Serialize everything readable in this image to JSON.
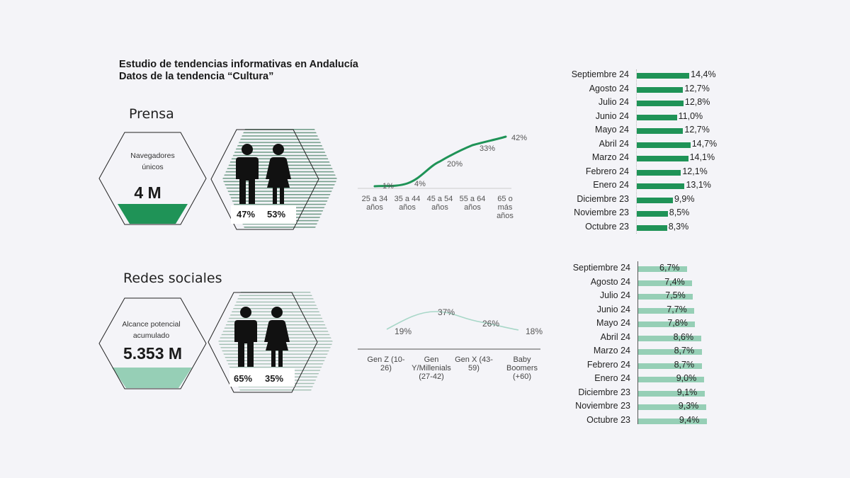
{
  "header": {
    "title_line1": "Estudio de tendencias informativas en Andalucía",
    "title_line2": "Datos de la tendencia “Cultura”"
  },
  "colors": {
    "background": "#f4f4f8",
    "prensa_green": "#1f9357",
    "redes_green": "#96cfb6",
    "redes_line": "#a8d7c8",
    "stripe_green": "#5d8f78"
  },
  "prensa": {
    "section_label": "Prensa",
    "metric_label_line1": "Navegadores",
    "metric_label_line2": "únicos",
    "metric_value": "4 M",
    "gender": {
      "male_pct": "47%",
      "female_pct": "53%"
    }
  },
  "redes": {
    "section_label": "Redes sociales",
    "metric_label_line1": "Alcance potencial",
    "metric_label_line2": "acumulado",
    "metric_value": "5.353 M",
    "gender": {
      "male_pct": "65%",
      "female_pct": "35%"
    }
  },
  "chart_data": [
    {
      "type": "line",
      "title": "Prensa - distribución por edad",
      "categories": [
        "25 a 34 años",
        "35 a 44 años",
        "45 a 54 años",
        "55 a 64 años",
        "65 o más años"
      ],
      "values": [
        1,
        4,
        20,
        33,
        42
      ],
      "labels": [
        "1%",
        "4%",
        "20%",
        "33%",
        "42%"
      ],
      "xlabel": "",
      "ylabel": "",
      "grid": false,
      "color": "#1f9357"
    },
    {
      "type": "line",
      "title": "Redes sociales - distribución por generación",
      "categories": [
        "Gen Z (10-26)",
        "Gen Y/Millenials (27-42)",
        "Gen X (43-59)",
        "Baby Boomers (+60)"
      ],
      "values": [
        19,
        37,
        26,
        18
      ],
      "labels": [
        "19%",
        "37%",
        "26%",
        "18%"
      ],
      "xlabel": "",
      "ylabel": "",
      "grid": false,
      "color": "#a8d7c8"
    },
    {
      "type": "bar",
      "orientation": "horizontal",
      "title": "Prensa - evolución mensual",
      "categories": [
        "Septiembre 24",
        "Agosto 24",
        "Julio 24",
        "Junio 24",
        "Mayo 24",
        "Abril 24",
        "Marzo 24",
        "Febrero 24",
        "Enero 24",
        "Diciembre 23",
        "Noviembre 23",
        "Octubre 23"
      ],
      "values": [
        14.4,
        12.7,
        12.8,
        11.0,
        12.7,
        14.7,
        14.1,
        12.1,
        13.1,
        9.9,
        8.5,
        8.3
      ],
      "labels": [
        "14,4%",
        "12,7%",
        "12,8%",
        "11,0%",
        "12,7%",
        "14,7%",
        "14,1%",
        "12,1%",
        "13,1%",
        "9,9%",
        "8,5%",
        "8,3%"
      ],
      "color": "#1f9357"
    },
    {
      "type": "bar",
      "orientation": "horizontal",
      "title": "Redes sociales - evolución mensual",
      "categories": [
        "Septiembre 24",
        "Agosto 24",
        "Julio 24",
        "Junio 24",
        "Mayo 24",
        "Abril 24",
        "Marzo 24",
        "Febrero 24",
        "Enero 24",
        "Diciembre 23",
        "Noviembre 23",
        "Octubre 23"
      ],
      "values": [
        6.7,
        7.4,
        7.5,
        7.7,
        7.8,
        8.6,
        8.7,
        8.7,
        9.0,
        9.1,
        9.3,
        9.4
      ],
      "labels": [
        "6,7%",
        "7,4%",
        "7,5%",
        "7,7%",
        "7,8%",
        "8,6%",
        "8,7%",
        "8,7%",
        "9,0%",
        "9,1%",
        "9,3%",
        "9,4%"
      ],
      "color": "#96cfb6"
    }
  ]
}
